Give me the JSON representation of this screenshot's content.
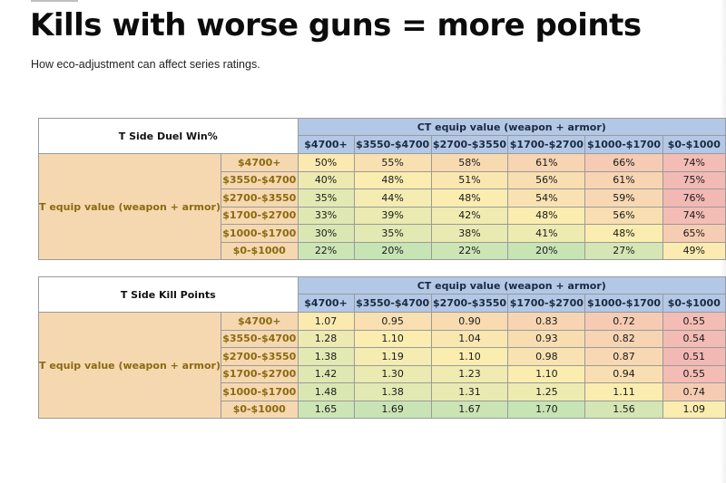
{
  "slide": {
    "title": "Kills with worse guns = more points",
    "subtitle": "How eco-adjustment can affect series ratings."
  },
  "colors": {
    "header_blue": "#b3c8e6",
    "header_tan": "#f6d8b0",
    "heat_green": "#c7e4b4",
    "heat_yellow": "#fbedb0",
    "heat_red": "#f2b8b4"
  },
  "tables": [
    {
      "corner": "T Side Duel Win%",
      "ct_header": "CT equip value (weapon + armor)",
      "t_header": "T equip value (weapon + armor)",
      "columns": [
        "$4700+",
        "$3550-$4700",
        "$2700-$3550",
        "$1700-$2700",
        "$1000-$1700",
        "$0-$1000"
      ],
      "rows": [
        {
          "label": "$4700+",
          "values": [
            "50%",
            "55%",
            "58%",
            "61%",
            "66%",
            "74%"
          ]
        },
        {
          "label": "$3550-$4700",
          "values": [
            "40%",
            "48%",
            "51%",
            "56%",
            "61%",
            "75%"
          ]
        },
        {
          "label": "$2700-$3550",
          "values": [
            "35%",
            "44%",
            "48%",
            "54%",
            "59%",
            "76%"
          ]
        },
        {
          "label": "$1700-$2700",
          "values": [
            "33%",
            "39%",
            "42%",
            "48%",
            "56%",
            "74%"
          ]
        },
        {
          "label": "$1000-$1700",
          "values": [
            "30%",
            "35%",
            "38%",
            "41%",
            "48%",
            "65%"
          ]
        },
        {
          "label": "$0-$1000",
          "values": [
            "22%",
            "20%",
            "22%",
            "20%",
            "27%",
            "49%"
          ]
        }
      ]
    },
    {
      "corner": "T Side Kill Points",
      "ct_header": "CT equip value (weapon + armor)",
      "t_header": "T equip value (weapon + armor)",
      "columns": [
        "$4700+",
        "$3550-$4700",
        "$2700-$3550",
        "$1700-$2700",
        "$1000-$1700",
        "$0-$1000"
      ],
      "rows": [
        {
          "label": "$4700+",
          "values": [
            "1.07",
            "0.95",
            "0.90",
            "0.83",
            "0.72",
            "0.55"
          ]
        },
        {
          "label": "$3550-$4700",
          "values": [
            "1.28",
            "1.10",
            "1.04",
            "0.93",
            "0.82",
            "0.54"
          ]
        },
        {
          "label": "$2700-$3550",
          "values": [
            "1.38",
            "1.19",
            "1.10",
            "0.98",
            "0.87",
            "0.51"
          ]
        },
        {
          "label": "$1700-$2700",
          "values": [
            "1.42",
            "1.30",
            "1.23",
            "1.10",
            "0.94",
            "0.55"
          ]
        },
        {
          "label": "$1000-$1700",
          "values": [
            "1.48",
            "1.38",
            "1.31",
            "1.25",
            "1.11",
            "0.74"
          ]
        },
        {
          "label": "$0-$1000",
          "values": [
            "1.65",
            "1.69",
            "1.67",
            "1.70",
            "1.56",
            "1.09"
          ]
        }
      ]
    }
  ]
}
